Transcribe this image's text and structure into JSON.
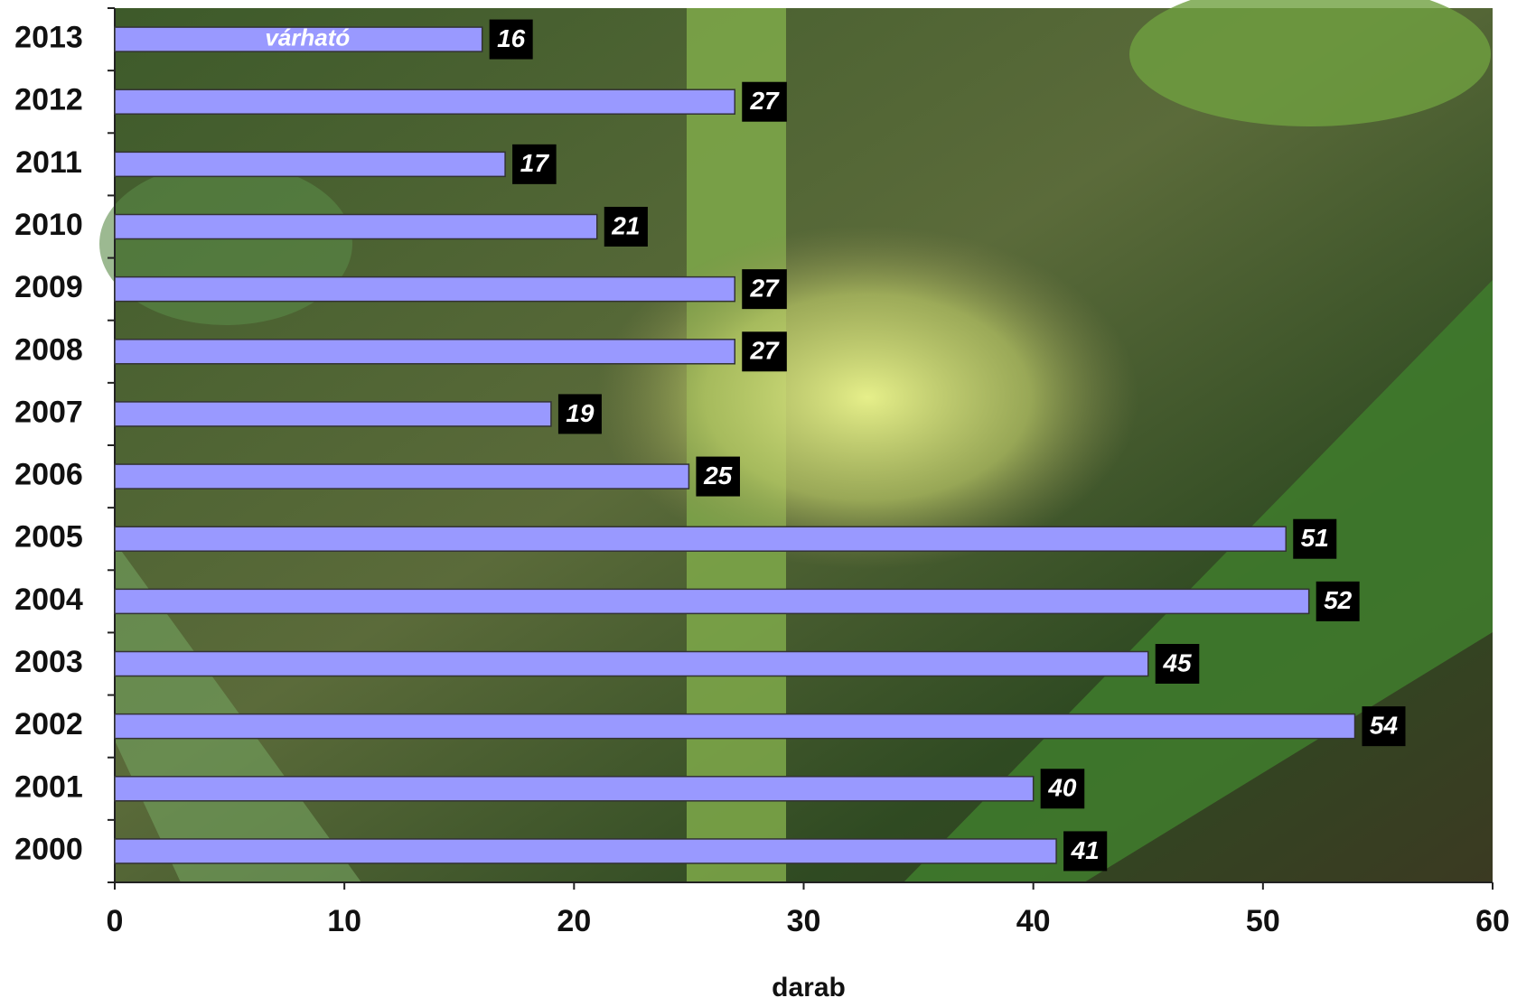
{
  "chart_data": {
    "type": "bar",
    "orientation": "horizontal",
    "categories": [
      "2013",
      "2012",
      "2011",
      "2010",
      "2009",
      "2008",
      "2007",
      "2006",
      "2005",
      "2004",
      "2003",
      "2002",
      "2001",
      "2000"
    ],
    "values": [
      16,
      27,
      17,
      21,
      27,
      27,
      19,
      25,
      51,
      52,
      45,
      54,
      40,
      41
    ],
    "color": "#9999ff",
    "annotation": "várható",
    "xlabel": "darab",
    "xlim": [
      0,
      60
    ],
    "xticks": [
      0,
      10,
      20,
      30,
      40,
      50,
      60
    ]
  }
}
